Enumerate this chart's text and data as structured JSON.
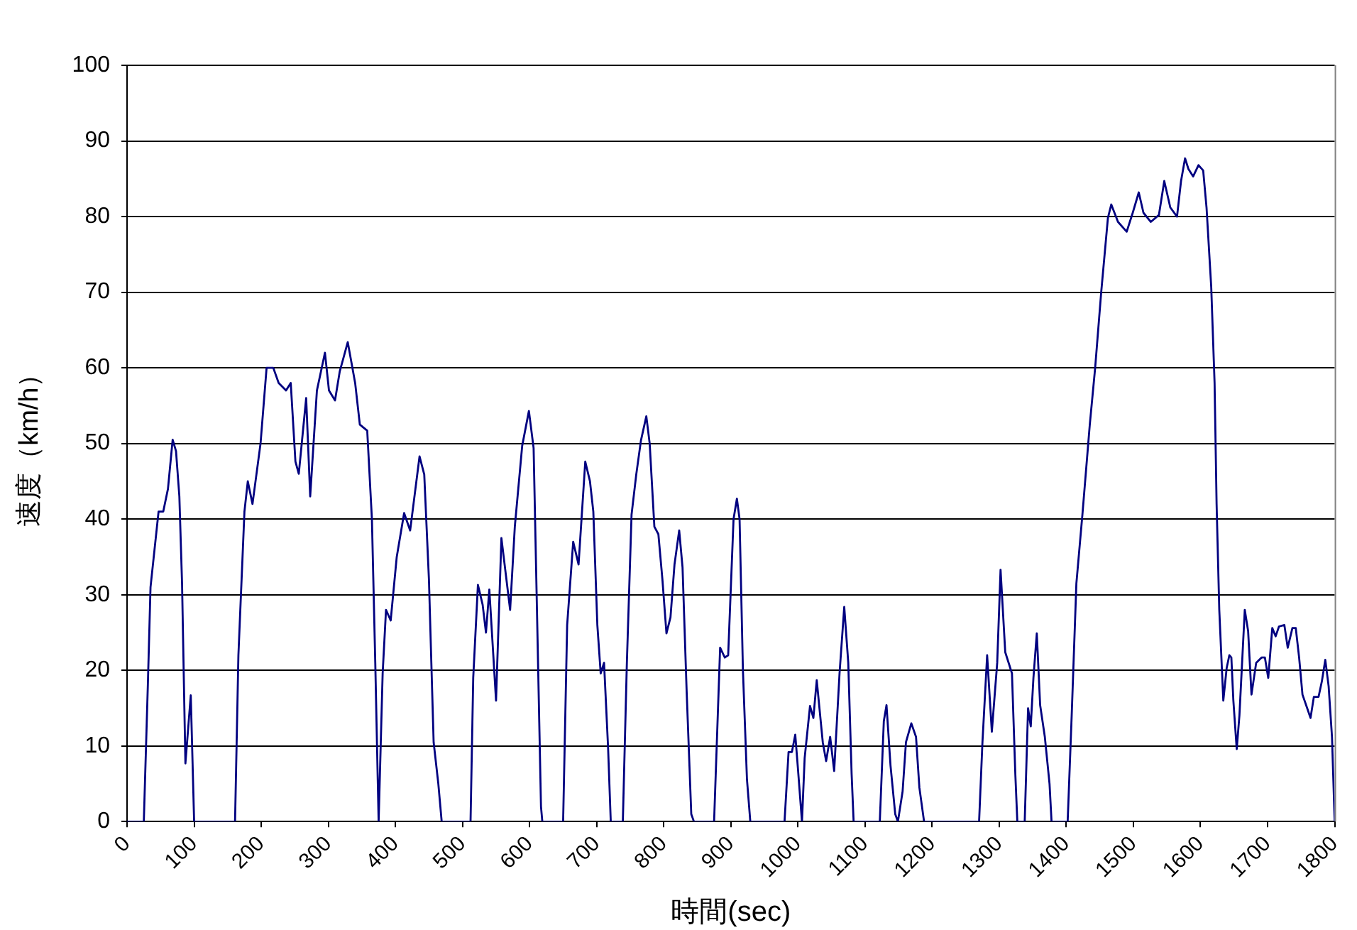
{
  "chart_data": {
    "type": "line",
    "xlabel": "時間(sec)",
    "ylabel": "速度（km/h）",
    "xlim": [
      0,
      1800
    ],
    "xticks": [
      0,
      100,
      200,
      300,
      400,
      500,
      600,
      700,
      800,
      900,
      1000,
      1100,
      1200,
      1300,
      1400,
      1500,
      1600,
      1700,
      1800
    ],
    "ylim": [
      0,
      100
    ],
    "yticks": [
      0,
      10,
      20,
      30,
      40,
      50,
      60,
      70,
      80,
      90,
      100
    ],
    "grid": "y",
    "legend": false,
    "marker": "none",
    "line_style": "solid",
    "series": [
      {
        "color": "#000080",
        "x": [
          0,
          25,
          31,
          35,
          47,
          54,
          61,
          68,
          73,
          78,
          82,
          87,
          95,
          100,
          161,
          166,
          175,
          180,
          187,
          199,
          208,
          218,
          226,
          237,
          244,
          251,
          256,
          267,
          273,
          283,
          295,
          301,
          310,
          317,
          329,
          340,
          347,
          358,
          365,
          370,
          375,
          381,
          386,
          393,
          402,
          413,
          422,
          427,
          436,
          443,
          450,
          457,
          464,
          469,
          512,
          516,
          523,
          530,
          535,
          540,
          550,
          558,
          571,
          578,
          589,
          599,
          606,
          611,
          617,
          619,
          650,
          656,
          665,
          673,
          683,
          690,
          695,
          701,
          706,
          711,
          717,
          721,
          739,
          745,
          752,
          759,
          766,
          774,
          779,
          786,
          792,
          798,
          804,
          810,
          816,
          823,
          828,
          834,
          841,
          845,
          875,
          884,
          891,
          896,
          904,
          909,
          913,
          918,
          924,
          929,
          980,
          986,
          991,
          996,
          1000,
          1006,
          1010,
          1018,
          1023,
          1028,
          1037,
          1042,
          1048,
          1054,
          1062,
          1069,
          1075,
          1080,
          1083,
          1122,
          1128,
          1132,
          1138,
          1145,
          1149,
          1156,
          1161,
          1169,
          1176,
          1181,
          1188,
          1270,
          1275,
          1282,
          1289,
          1297,
          1302,
          1309,
          1319,
          1324,
          1327,
          1338,
          1343,
          1347,
          1351,
          1356,
          1361,
          1368,
          1375,
          1378,
          1402,
          1408,
          1415,
          1424,
          1435,
          1443,
          1452,
          1462,
          1467,
          1477,
          1490,
          1499,
          1508,
          1515,
          1526,
          1538,
          1546,
          1555,
          1565,
          1571,
          1577,
          1582,
          1589,
          1597,
          1604,
          1609,
          1616,
          1621,
          1624,
          1628,
          1634,
          1639,
          1643,
          1646,
          1649,
          1654,
          1658,
          1666,
          1671,
          1676,
          1683,
          1691,
          1696,
          1701,
          1707,
          1712,
          1717,
          1725,
          1730,
          1737,
          1742,
          1747,
          1752,
          1759,
          1764,
          1769,
          1776,
          1781,
          1786,
          1791,
          1796,
          1800
        ],
        "values": [
          0,
          0,
          18,
          31,
          41,
          41,
          44,
          50.5,
          49,
          43,
          31.5,
          7.7,
          16.7,
          0,
          0,
          22,
          41,
          45,
          42,
          50,
          60,
          60,
          58,
          57,
          58,
          47.6,
          46,
          56,
          43,
          57,
          62,
          57,
          55.7,
          59.5,
          63.4,
          58,
          52.5,
          51.7,
          40,
          21,
          0,
          19.6,
          28,
          26.6,
          35,
          40.8,
          38.5,
          42,
          48.3,
          45.9,
          32,
          10.5,
          5,
          0,
          0,
          19,
          31.3,
          28.7,
          25,
          30.7,
          16,
          37.5,
          28,
          39,
          49.7,
          54.3,
          49.4,
          28,
          2,
          0,
          0,
          26,
          37,
          34,
          47.6,
          45,
          41,
          26,
          19.6,
          21,
          9.8,
          0,
          0,
          21,
          40.6,
          45.9,
          50.4,
          53.6,
          50,
          39,
          38,
          32,
          24.9,
          27,
          34,
          38.5,
          33.6,
          17.5,
          1,
          0,
          0,
          23,
          21.7,
          22,
          40,
          42.7,
          40,
          20,
          5.6,
          0,
          0,
          9.2,
          9.2,
          11.5,
          7,
          0,
          8.4,
          15.3,
          13.7,
          18.7,
          10.5,
          8,
          11.2,
          6.7,
          19.6,
          28.4,
          21,
          6.3,
          0,
          0,
          13.3,
          15.4,
          7.4,
          1,
          0,
          4,
          10.5,
          13,
          11.2,
          4.5,
          0,
          0,
          10.5,
          22,
          11.9,
          21,
          33.3,
          22.4,
          19.6,
          6.3,
          0,
          0,
          15,
          12.6,
          19,
          24.9,
          15.4,
          11.2,
          5,
          0,
          0,
          14,
          31.5,
          40.6,
          52.5,
          60,
          70,
          79.8,
          81.6,
          79.3,
          78,
          80.5,
          83.2,
          80.5,
          79.3,
          80.2,
          84.7,
          81.2,
          80,
          84.7,
          87.7,
          86.3,
          85.3,
          86.8,
          86.1,
          81.2,
          70.7,
          58,
          42,
          28,
          16,
          20.3,
          22,
          21.7,
          16,
          9.6,
          14,
          28,
          25.2,
          16.8,
          21,
          21.7,
          21.7,
          19,
          25.6,
          24.5,
          25.8,
          26,
          23,
          25.6,
          25.6,
          21.7,
          16.8,
          15,
          13.7,
          16.5,
          16.5,
          18.6,
          21.4,
          17.9,
          11.2,
          0
        ]
      }
    ]
  }
}
